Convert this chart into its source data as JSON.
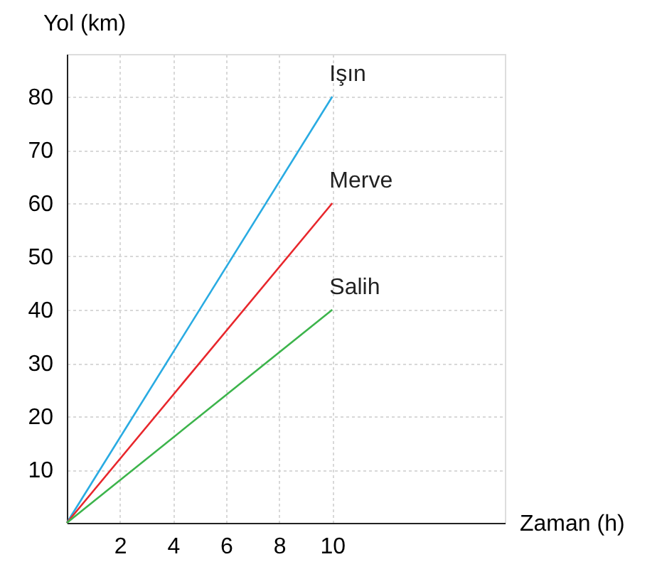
{
  "chart_data": {
    "type": "line",
    "xlabel": "Zaman (h)",
    "ylabel": "Yol (km)",
    "x": [
      0,
      10
    ],
    "series": [
      {
        "name": "Işın",
        "color": "#29abe2",
        "values": [
          0,
          80
        ]
      },
      {
        "name": "Merve",
        "color": "#e8262b",
        "values": [
          0,
          60
        ]
      },
      {
        "name": "Salih",
        "color": "#3cb44b",
        "values": [
          0,
          40
        ]
      }
    ],
    "xlim": [
      0,
      16.5
    ],
    "xticks": [
      2,
      4,
      6,
      8,
      10
    ],
    "ylim": [
      0,
      88
    ],
    "yticks": [
      10,
      20,
      30,
      40,
      50,
      60,
      70,
      80
    ],
    "grid": true,
    "legend": false,
    "marker": "none",
    "line_style": "solid"
  }
}
